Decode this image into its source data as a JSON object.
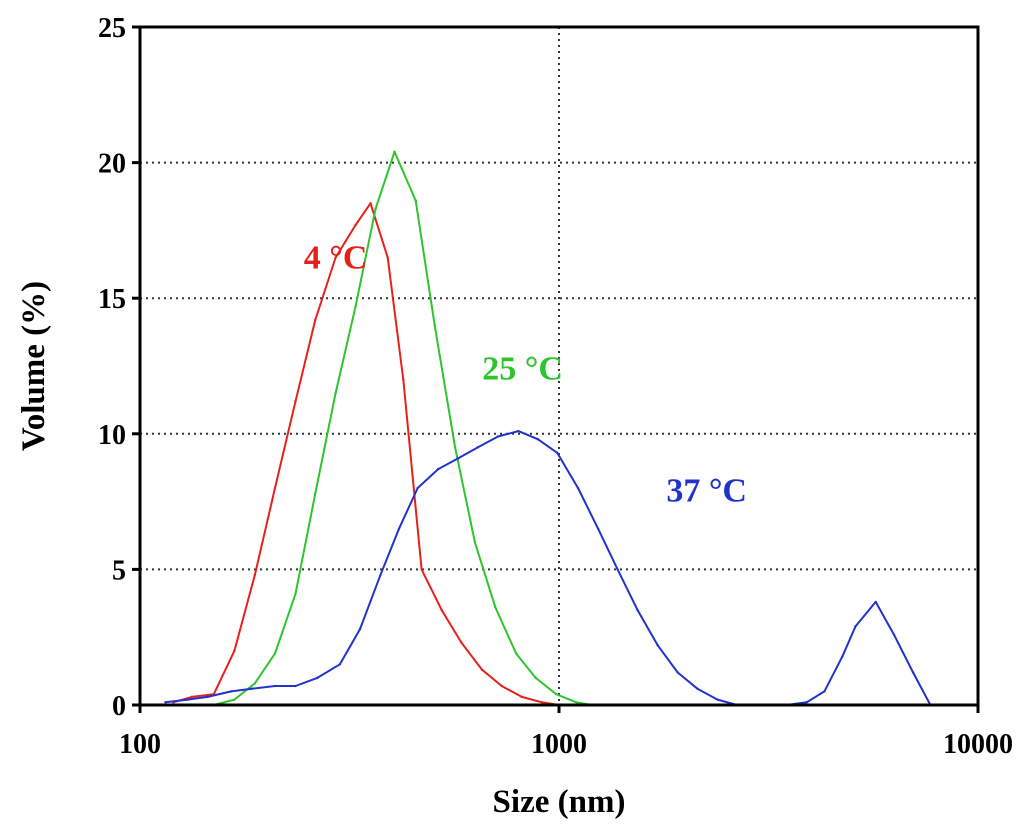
{
  "chart_data": {
    "type": "line",
    "title": "",
    "xlabel": "Size (nm)",
    "ylabel": "Volume (%)",
    "xscale": "log",
    "xlim": [
      100,
      10000
    ],
    "ylim": [
      0,
      25
    ],
    "x_ticks": [
      "100",
      "1000",
      "10000"
    ],
    "y_ticks": [
      "0",
      "5",
      "10",
      "15",
      "20",
      "25"
    ],
    "grid": {
      "horizontal_values": [
        5,
        10,
        15,
        20
      ],
      "vertical_values": [
        1000
      ],
      "style": "dotted"
    },
    "legend": "none",
    "series": [
      {
        "name": "4 °C",
        "color": "#e8201c",
        "points": [
          [
            120,
            0.1
          ],
          [
            133,
            0.3
          ],
          [
            150,
            0.4
          ],
          [
            168,
            2.0
          ],
          [
            188,
            4.8
          ],
          [
            210,
            8.0
          ],
          [
            235,
            11.2
          ],
          [
            262,
            14.2
          ],
          [
            293,
            16.5
          ],
          [
            327,
            17.7
          ],
          [
            355,
            18.5
          ],
          [
            390,
            16.5
          ],
          [
            425,
            12.0
          ],
          [
            470,
            5.0
          ],
          [
            525,
            3.5
          ],
          [
            585,
            2.3
          ],
          [
            655,
            1.3
          ],
          [
            730,
            0.7
          ],
          [
            815,
            0.3
          ],
          [
            910,
            0.1
          ],
          [
            1000,
            0.0
          ],
          [
            1100,
            0.0
          ]
        ]
      },
      {
        "name": "25 °C",
        "color": "#2ec42e",
        "points": [
          [
            150,
            0.0
          ],
          [
            168,
            0.2
          ],
          [
            188,
            0.8
          ],
          [
            210,
            1.9
          ],
          [
            235,
            4.1
          ],
          [
            262,
            7.8
          ],
          [
            293,
            11.5
          ],
          [
            327,
            14.7
          ],
          [
            365,
            18.3
          ],
          [
            405,
            20.4
          ],
          [
            455,
            18.6
          ],
          [
            505,
            14.0
          ],
          [
            565,
            9.5
          ],
          [
            630,
            6.0
          ],
          [
            705,
            3.6
          ],
          [
            790,
            1.9
          ],
          [
            880,
            1.0
          ],
          [
            985,
            0.4
          ],
          [
            1100,
            0.1
          ],
          [
            1200,
            0.0
          ],
          [
            1300,
            0.0
          ]
        ]
      },
      {
        "name": "37 °C",
        "color": "#2233cc",
        "points": [
          [
            115,
            0.1
          ],
          [
            130,
            0.2
          ],
          [
            145,
            0.3
          ],
          [
            165,
            0.5
          ],
          [
            185,
            0.6
          ],
          [
            210,
            0.7
          ],
          [
            235,
            0.7
          ],
          [
            265,
            1.0
          ],
          [
            300,
            1.5
          ],
          [
            335,
            2.8
          ],
          [
            375,
            4.8
          ],
          [
            415,
            6.5
          ],
          [
            460,
            8.0
          ],
          [
            515,
            8.7
          ],
          [
            575,
            9.1
          ],
          [
            640,
            9.5
          ],
          [
            715,
            9.9
          ],
          [
            800,
            10.1
          ],
          [
            890,
            9.8
          ],
          [
            990,
            9.3
          ],
          [
            1110,
            8.0
          ],
          [
            1240,
            6.5
          ],
          [
            1380,
            5.0
          ],
          [
            1540,
            3.5
          ],
          [
            1720,
            2.2
          ],
          [
            1920,
            1.2
          ],
          [
            2140,
            0.6
          ],
          [
            2390,
            0.2
          ],
          [
            2660,
            0.0
          ],
          [
            3500,
            0.0
          ],
          [
            3900,
            0.1
          ],
          [
            4300,
            0.5
          ],
          [
            4750,
            1.8
          ],
          [
            5100,
            2.9
          ],
          [
            5700,
            3.8
          ],
          [
            6300,
            2.6
          ],
          [
            7000,
            1.2
          ],
          [
            7700,
            0.0
          ],
          [
            8500,
            0.0
          ],
          [
            10000,
            0.0
          ]
        ]
      }
    ],
    "annotations": [
      {
        "text": "4 °C",
        "color": "#e8201c",
        "x": 150,
        "y": 16.1
      },
      {
        "text": "25 °C",
        "color": "#2ec42e",
        "x": 400,
        "y": 12.0
      },
      {
        "text": "37 °C",
        "color": "#2233cc",
        "x": 1100,
        "y": 7.5
      }
    ]
  }
}
